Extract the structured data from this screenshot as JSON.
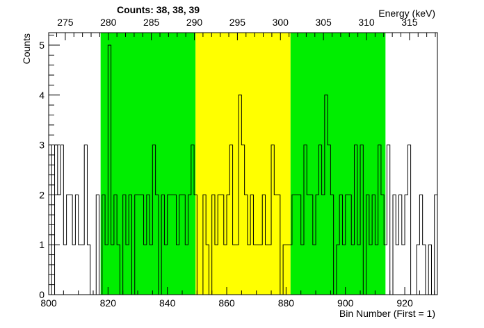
{
  "chart_data": {
    "type": "histogram-step",
    "title": "Counts:   38,   38,   39",
    "xlabel": "Bin Number (First = 1)",
    "ylabel": "Counts",
    "top_axis_label": "Energy (keV)",
    "xlim": [
      800,
      931
    ],
    "ylim": [
      0,
      5.25
    ],
    "x_ticks": [
      800,
      820,
      840,
      860,
      880,
      900,
      920
    ],
    "y_ticks": [
      0,
      1,
      2,
      3,
      4,
      5
    ],
    "top_axis": {
      "ticks": [
        275,
        280,
        285,
        290,
        295,
        300,
        305,
        310,
        315
      ],
      "bin_at_tick0": 805.6,
      "bins_per_unit": 2.9
    },
    "regions": [
      {
        "name": "left-side-band",
        "x_range": [
          817.5,
          849.5
        ],
        "color": "#00ee00"
      },
      {
        "name": "peak-region",
        "x_range": [
          849.5,
          881.5
        ],
        "color": "#ffff00"
      },
      {
        "name": "right-side-band",
        "x_range": [
          881.5,
          913.5
        ],
        "color": "#00ee00"
      }
    ],
    "bins": {
      "x_start": 800,
      "bin_width": 1,
      "values": [
        3,
        0,
        3,
        2,
        3,
        1,
        2,
        2,
        1,
        2,
        1,
        1,
        3,
        1,
        0,
        0,
        2,
        0,
        2,
        1,
        5,
        1,
        2,
        1,
        0,
        2,
        1,
        2,
        0,
        2,
        2,
        2,
        1,
        2,
        1,
        3,
        2,
        0,
        2,
        1,
        2,
        2,
        2,
        1,
        2,
        2,
        1,
        2,
        3,
        2,
        0,
        0,
        2,
        1,
        0,
        2,
        1,
        2,
        2,
        1,
        2,
        3,
        1,
        1,
        4,
        3,
        2,
        1,
        2,
        1,
        1,
        1,
        2,
        1,
        1,
        3,
        2,
        2,
        0,
        1,
        1,
        1,
        2,
        2,
        2,
        1,
        3,
        2,
        2,
        1,
        2,
        3,
        2,
        4,
        3,
        2,
        0,
        1,
        2,
        1,
        2,
        2,
        1,
        3,
        1,
        3,
        0,
        2,
        1,
        2,
        1,
        3,
        2,
        1,
        3,
        0,
        2,
        1,
        2,
        1,
        2,
        3,
        0,
        0,
        1,
        2,
        1,
        0,
        1,
        0,
        2
      ],
      "line_color": "#000000"
    }
  }
}
